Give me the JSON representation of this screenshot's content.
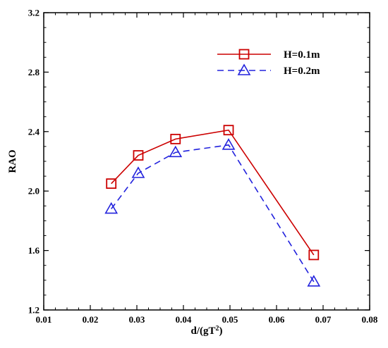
{
  "chart_data": {
    "type": "line",
    "xlabel": "d/(gT",
    "xlabel_sup": "2",
    "xlabel_end": ")",
    "ylabel": "RAO",
    "xlim": [
      0.01,
      0.08
    ],
    "ylim": [
      1.2,
      3.2
    ],
    "x_ticks": [
      "0.01",
      "0.02",
      "0.03",
      "0.04",
      "0.05",
      "0.06",
      "0.07",
      "0.08"
    ],
    "y_ticks": [
      "1.2",
      "1.6",
      "2.0",
      "2.4",
      "2.8",
      "3.2"
    ],
    "grid": false,
    "legend_position": "top-right",
    "series": [
      {
        "name": "H=0.1m",
        "color": "#cc0000",
        "line_style": "solid",
        "marker": "square",
        "x": [
          0.0245,
          0.0303,
          0.0383,
          0.0497,
          0.068
        ],
        "y": [
          2.05,
          2.24,
          2.35,
          2.41,
          1.57
        ]
      },
      {
        "name": "H=0.2m",
        "color": "#2222dd",
        "line_style": "dashed",
        "marker": "triangle",
        "x": [
          0.0245,
          0.0303,
          0.0383,
          0.0497,
          0.068
        ],
        "y": [
          1.88,
          2.12,
          2.26,
          2.31,
          1.39
        ]
      }
    ]
  }
}
